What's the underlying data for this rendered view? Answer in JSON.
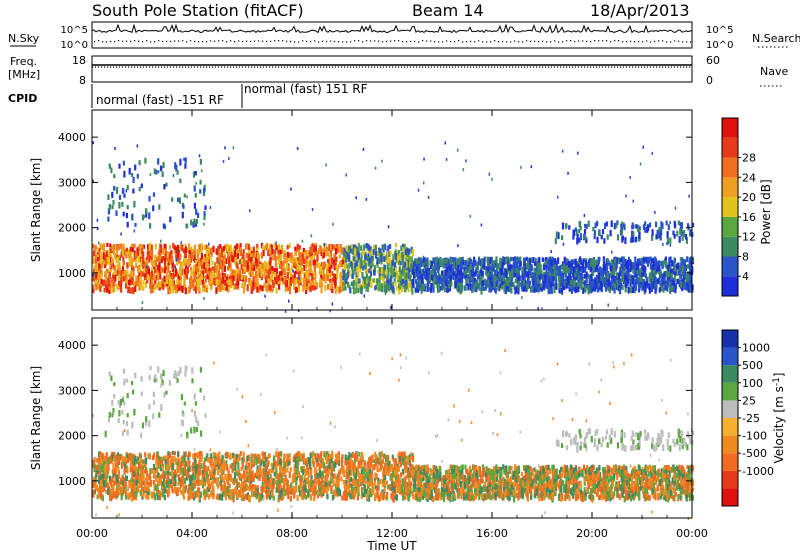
{
  "header": {
    "station": "South Pole Station (fitACF)",
    "beam": "Beam 14",
    "date": "18/Apr/2013"
  },
  "left_labels": {
    "nsky": "N.Sky",
    "freq_line1": "Freq.",
    "freq_line2": "[MHz]",
    "cpid": "CPID"
  },
  "right_labels": {
    "nsearch": "N.Search",
    "nave": "Nave"
  },
  "nsky_panel": {
    "ticks_left": [
      "10^5",
      "10^0"
    ],
    "ticks_right": [
      "10^5",
      "10^0"
    ]
  },
  "freq_panel": {
    "ticks_left": [
      "18",
      "8"
    ],
    "ticks_right": [
      "60",
      "0"
    ]
  },
  "cpid": {
    "segments": [
      {
        "label": "normal (fast) -151 RF",
        "start_hour": 0,
        "end_hour": 6
      },
      {
        "label": "normal (fast) 151 RF",
        "start_hour": 6,
        "end_hour": 24
      }
    ]
  },
  "colors": {
    "power": [
      "#1f2fd8",
      "#2a55c8",
      "#3c8a60",
      "#5aa640",
      "#e3c21a",
      "#f0a020",
      "#f07020",
      "#e83a18",
      "#e01010"
    ],
    "velocity": [
      "#1530a8",
      "#2a55c8",
      "#3c8a60",
      "#5aa640",
      "#bdbdbd",
      "#f5b030",
      "#f08a20",
      "#f06a20",
      "#e83a18",
      "#e01010"
    ]
  },
  "chart_data": [
    {
      "type": "heatmap",
      "title": "Power",
      "ylabel": "Slant Range [km]",
      "xlabel": "Time UT",
      "xlim": [
        0,
        24
      ],
      "ylim": [
        180,
        4600
      ],
      "x_ticks": [
        "00:00",
        "04:00",
        "08:00",
        "12:00",
        "16:00",
        "20:00",
        "00:00"
      ],
      "y_ticks": [
        1000,
        2000,
        3000,
        4000
      ],
      "colorbar": {
        "label": "Power [dB]",
        "ticks": [
          4,
          8,
          12,
          16,
          20,
          24,
          28
        ]
      },
      "echo_regions": [
        {
          "start_hour": 0.0,
          "end_hour": 12.8,
          "range_low_km": 600,
          "range_high_km": 1600,
          "typical_value": 20
        },
        {
          "start_hour": 12.8,
          "end_hour": 24.0,
          "range_low_km": 600,
          "range_high_km": 1300,
          "typical_value": 6
        },
        {
          "start_hour": 0.5,
          "end_hour": 4.5,
          "range_low_km": 2000,
          "range_high_km": 3500,
          "typical_value": 5
        },
        {
          "start_hour": 18.5,
          "end_hour": 24.0,
          "range_low_km": 1700,
          "range_high_km": 2100,
          "typical_value": 5
        }
      ]
    },
    {
      "type": "heatmap",
      "title": "Velocity",
      "ylabel": "Slant Range [km]",
      "xlabel": "Time UT",
      "xlim": [
        0,
        24
      ],
      "ylim": [
        180,
        4600
      ],
      "x_ticks": [
        "00:00",
        "04:00",
        "08:00",
        "12:00",
        "16:00",
        "20:00",
        "00:00"
      ],
      "y_ticks": [
        1000,
        2000,
        3000,
        4000
      ],
      "colorbar": {
        "label": "Velocity [m s^-1]",
        "ticks": [
          1000,
          500,
          100,
          25,
          -25,
          -100,
          -500,
          -1000
        ]
      },
      "echo_regions": [
        {
          "start_hour": 0.0,
          "end_hour": 12.8,
          "range_low_km": 600,
          "range_high_km": 1600,
          "typical_value": -200
        },
        {
          "start_hour": 12.8,
          "end_hour": 24.0,
          "range_low_km": 600,
          "range_high_km": 1300,
          "typical_value": -150
        },
        {
          "start_hour": 0.5,
          "end_hour": 4.5,
          "range_low_km": 2000,
          "range_high_km": 3500,
          "typical_value": 0
        },
        {
          "start_hour": 18.5,
          "end_hour": 24.0,
          "range_low_km": 1700,
          "range_high_km": 2100,
          "typical_value": 0
        }
      ]
    }
  ]
}
